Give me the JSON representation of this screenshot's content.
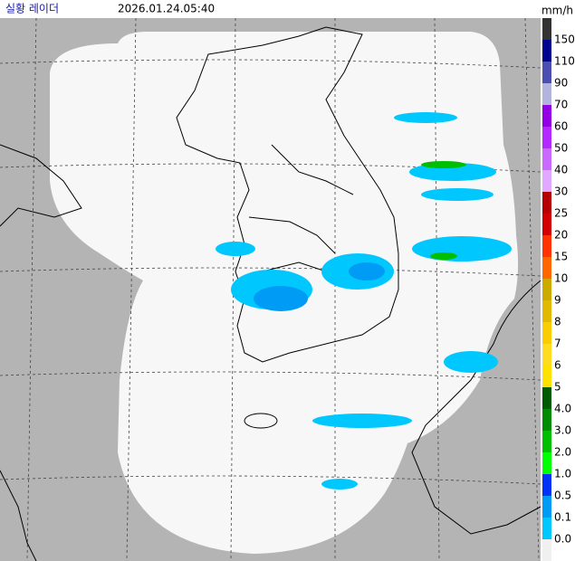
{
  "header": {
    "title": "실황 레이더",
    "timestamp": "2026.01.24.05:40"
  },
  "legend": {
    "unit": "mm/h",
    "items": [
      {
        "label": "150",
        "color": "#333333"
      },
      {
        "label": "110",
        "color": "#000390"
      },
      {
        "label": "90",
        "color": "#4c4eb1"
      },
      {
        "label": "70",
        "color": "#b3b4de"
      },
      {
        "label": "60",
        "color": "#9300e4"
      },
      {
        "label": "50",
        "color": "#b329ff"
      },
      {
        "label": "40",
        "color": "#c969ff"
      },
      {
        "label": "30",
        "color": "#e0a9ff"
      },
      {
        "label": "25",
        "color": "#b40000"
      },
      {
        "label": "20",
        "color": "#d20000"
      },
      {
        "label": "15",
        "color": "#ff3200"
      },
      {
        "label": "10",
        "color": "#ff6600"
      },
      {
        "label": "9",
        "color": "#ccaa00"
      },
      {
        "label": "8",
        "color": "#e0b900"
      },
      {
        "label": "7",
        "color": "#f9cd00"
      },
      {
        "label": "6",
        "color": "#ffdc1f"
      },
      {
        "label": "5",
        "color": "#ffe100"
      },
      {
        "label": "4.0",
        "color": "#005a00"
      },
      {
        "label": "3.0",
        "color": "#008c00"
      },
      {
        "label": "2.0",
        "color": "#00be00"
      },
      {
        "label": "1.0",
        "color": "#00ff00"
      },
      {
        "label": "0.5",
        "color": "#0033f5"
      },
      {
        "label": "0.1",
        "color": "#009bf5"
      },
      {
        "label": "0.0",
        "color": "#00c8ff"
      }
    ]
  }
}
